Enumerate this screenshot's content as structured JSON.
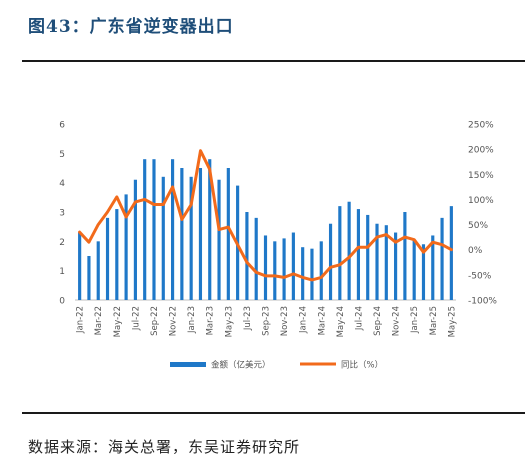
{
  "figure": {
    "title": "图43：广东省逆变器出口",
    "source": "数据来源：海关总署，东吴证券研究所"
  },
  "colors": {
    "bars": "#1f78c8",
    "line": "#f26a1b",
    "axis": "#bfbfbf",
    "text": "#555555"
  },
  "chart_data": {
    "type": "bar",
    "categories": [
      "Jan-22",
      "Feb-22",
      "Mar-22",
      "Apr-22",
      "May-22",
      "Jun-22",
      "Jul-22",
      "Aug-22",
      "Sep-22",
      "Oct-22",
      "Nov-22",
      "Dec-22",
      "Jan-23",
      "Feb-23",
      "Mar-23",
      "Apr-23",
      "May-23",
      "Jun-23",
      "Jul-23",
      "Aug-23",
      "Sep-23",
      "Oct-23",
      "Nov-23",
      "Dec-23",
      "Jan-24",
      "Feb-24",
      "Mar-24",
      "Apr-24",
      "May-24",
      "Jun-24",
      "Jul-24",
      "Aug-24",
      "Sep-24",
      "Oct-24",
      "Nov-24",
      "Dec-24",
      "Jan-25",
      "Feb-25",
      "Mar-25",
      "Apr-25",
      "May-25"
    ],
    "tick_labels": [
      "Jan-22",
      "Mar-22",
      "May-22",
      "Jul-22",
      "Sep-22",
      "Nov-22",
      "Jan-23",
      "Mar-23",
      "May-23",
      "Jul-23",
      "Sep-23",
      "Nov-23",
      "Jan-24",
      "Mar-24",
      "May-24",
      "Jul-24",
      "Sep-24",
      "Nov-24",
      "Jan-25",
      "Mar-25",
      "May-25"
    ],
    "series": [
      {
        "name": "金额（亿美元）",
        "type": "bar",
        "axis": "left",
        "values": [
          2.3,
          1.5,
          2.0,
          2.8,
          3.1,
          3.6,
          4.1,
          4.8,
          4.8,
          4.2,
          4.8,
          4.5,
          4.2,
          4.5,
          4.8,
          4.1,
          4.5,
          3.9,
          3.0,
          2.8,
          2.2,
          2.0,
          2.1,
          2.3,
          1.8,
          1.75,
          2.0,
          2.6,
          3.2,
          3.35,
          3.1,
          2.9,
          2.6,
          2.55,
          2.3,
          3.0,
          2.05,
          1.9,
          2.2,
          2.8,
          3.2
        ]
      },
      {
        "name": "同比（%）",
        "type": "line",
        "axis": "right",
        "values": [
          35,
          15,
          50,
          75,
          105,
          65,
          95,
          100,
          90,
          90,
          125,
          60,
          90,
          197,
          160,
          40,
          45,
          10,
          -25,
          -45,
          -52,
          -52,
          -55,
          -48,
          -55,
          -60,
          -55,
          -35,
          -30,
          -15,
          5,
          5,
          25,
          30,
          15,
          25,
          20,
          -5,
          15,
          10,
          0
        ]
      }
    ],
    "ylim_left": [
      0,
      6
    ],
    "yticks_left": [
      "0",
      "1",
      "2",
      "3",
      "4",
      "5",
      "6"
    ],
    "ylim_right": [
      -100,
      250
    ],
    "yticks_right": [
      "-100%",
      "-50%",
      "0%",
      "50%",
      "100%",
      "150%",
      "200%",
      "250%"
    ],
    "legend_position": "bottom",
    "grid": false
  }
}
